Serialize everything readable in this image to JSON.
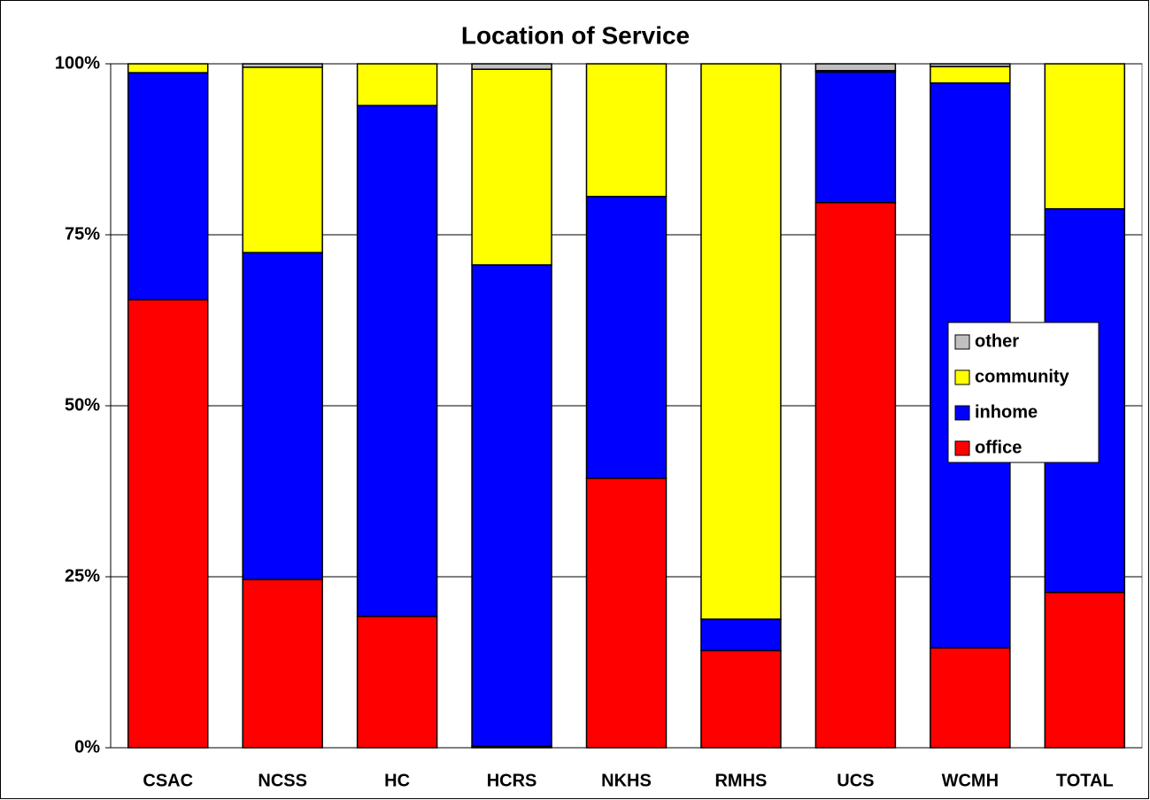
{
  "chart_data": {
    "type": "stacked_bar",
    "title": "Location of Service",
    "categories": [
      "CSAC",
      "NCSS",
      "HC",
      "HCRS",
      "NKHS",
      "RMHS",
      "UCS",
      "WCMH",
      "TOTAL"
    ],
    "series": [
      {
        "name": "office",
        "color": "#ff0000",
        "values": [
          65.5,
          24.6,
          19.2,
          0.2,
          39.4,
          14.2,
          79.7,
          14.6,
          22.7
        ]
      },
      {
        "name": "inhome",
        "color": "#0000ff",
        "values": [
          33.2,
          47.8,
          74.7,
          70.4,
          41.2,
          4.6,
          19.1,
          82.6,
          56.1
        ]
      },
      {
        "name": "community",
        "color": "#ffff00",
        "values": [
          1.3,
          27.1,
          6.1,
          28.6,
          19.4,
          81.2,
          0.2,
          2.4,
          21.2
        ]
      },
      {
        "name": "other",
        "color": "#c0c0c0",
        "values": [
          0,
          0.5,
          0,
          0.8,
          0,
          0,
          1.0,
          0.4,
          0
        ]
      }
    ],
    "ylim": [
      0,
      100
    ],
    "yticks": [
      {
        "value": 0,
        "label": "0%"
      },
      {
        "value": 25,
        "label": "25%"
      },
      {
        "value": 50,
        "label": "50%"
      },
      {
        "value": 75,
        "label": "75%"
      },
      {
        "value": 100,
        "label": "100%"
      }
    ],
    "grid": true,
    "legend": "right"
  }
}
